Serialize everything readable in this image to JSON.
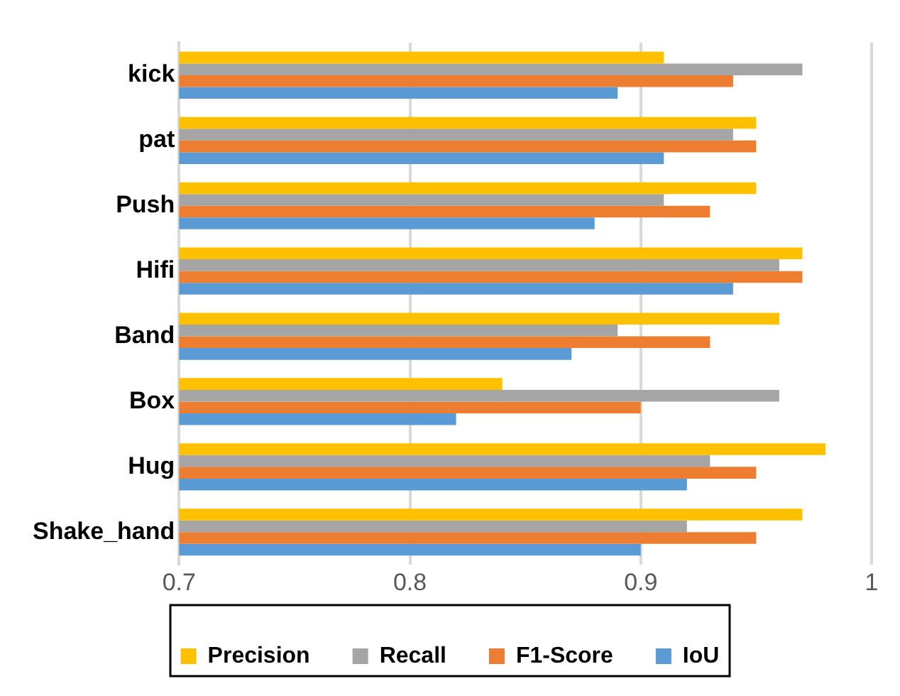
{
  "chart_data": {
    "type": "bar",
    "orientation": "horizontal",
    "categories": [
      "kick",
      "pat",
      "Push",
      "Hifi",
      "Band",
      "Box",
      "Hug",
      "Shake_hand"
    ],
    "series": [
      {
        "name": "Precision",
        "color": "#ffc000",
        "values": [
          0.91,
          0.95,
          0.95,
          0.97,
          0.96,
          0.84,
          0.98,
          0.97
        ]
      },
      {
        "name": "Recall",
        "color": "#a5a5a5",
        "values": [
          0.97,
          0.94,
          0.91,
          0.96,
          0.89,
          0.96,
          0.93,
          0.92
        ]
      },
      {
        "name": "F1-Score",
        "color": "#ed7d31",
        "values": [
          0.94,
          0.95,
          0.93,
          0.97,
          0.93,
          0.9,
          0.95,
          0.95
        ]
      },
      {
        "name": "IoU",
        "color": "#5b9bd5",
        "values": [
          0.89,
          0.91,
          0.88,
          0.94,
          0.87,
          0.82,
          0.92,
          0.9
        ]
      }
    ],
    "xlim": [
      0.7,
      1
    ],
    "xticks": [
      0.7,
      0.8,
      0.9,
      1
    ],
    "grid": "x",
    "legend": "bottom"
  }
}
